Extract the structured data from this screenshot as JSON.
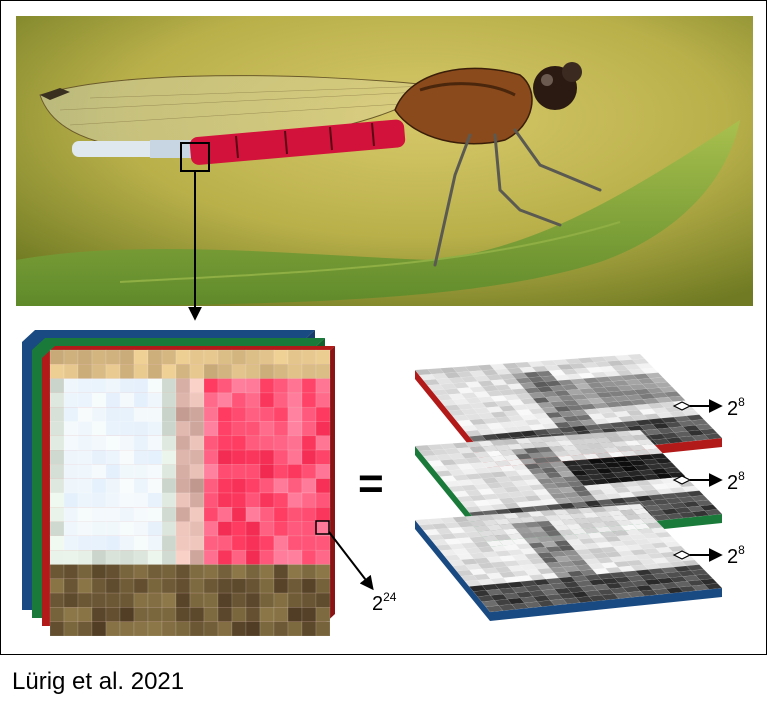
{
  "figure": {
    "photo_description_icon": "damselfly-on-leaf-photo",
    "equals_sign": "=",
    "rgb_pixel_exponent": "24",
    "rgb_pixel_base": "2",
    "channel_base": "2",
    "channel_exponent": "8",
    "channel_colors": {
      "red": "#b21a1a",
      "green": "#1a7a3a",
      "blue": "#1a4a82"
    },
    "citation": "Lürig et al. 2021"
  }
}
